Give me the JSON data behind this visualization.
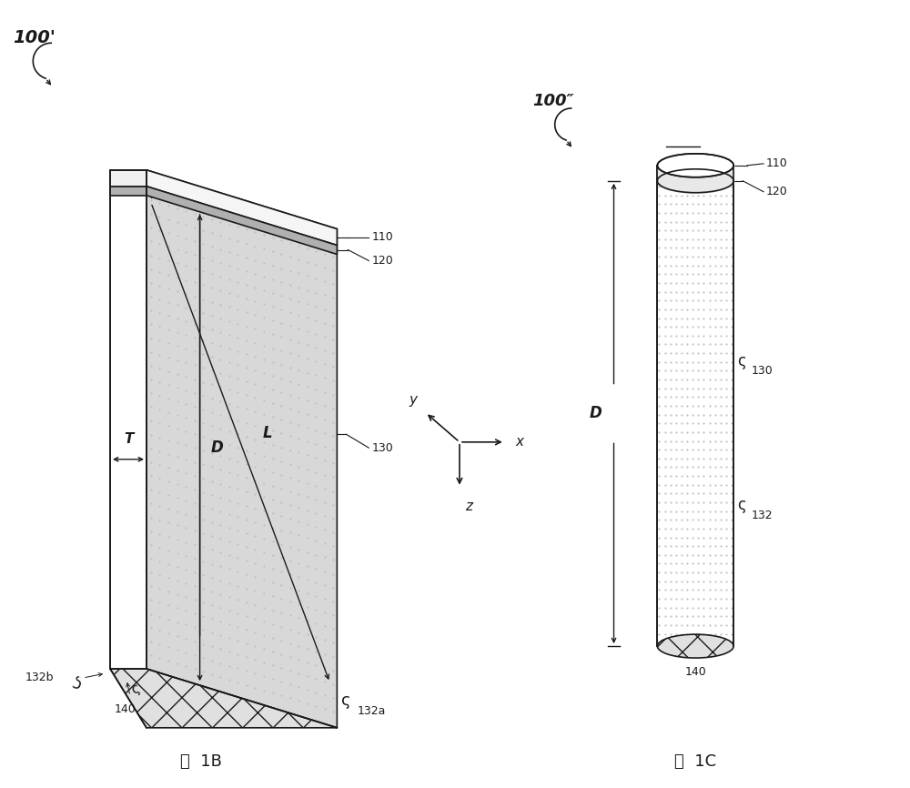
{
  "bg_color": "#ffffff",
  "fig_width": 10.0,
  "fig_height": 8.66,
  "label_100prime": "100'",
  "label_100doubleprime": "100\"",
  "label_fig1b": "图  1B",
  "label_fig1c": "图  1C",
  "dark": "#1a1a1a",
  "gray_fill": "#d0d0d0",
  "lw": 1.2
}
